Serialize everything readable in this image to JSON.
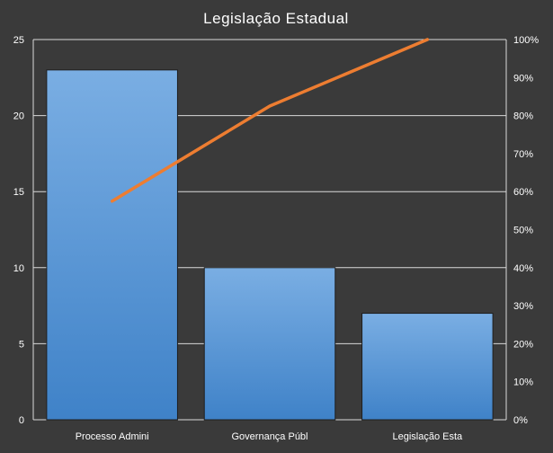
{
  "chart_data": {
    "type": "bar",
    "title": "Legislação Estadual",
    "categories": [
      "Processo Admini",
      "Governança Públ",
      "Legislação Esta"
    ],
    "series": [
      {
        "type": "bar",
        "values": [
          23,
          10,
          7
        ],
        "color": "#5b9bd5"
      },
      {
        "type": "line",
        "axis": "right",
        "values": [
          57.5,
          82.5,
          100
        ],
        "color": "#ed7d31"
      }
    ],
    "y_left": {
      "range": [
        0,
        25
      ],
      "ticks": [
        0,
        5,
        10,
        15,
        20,
        25
      ]
    },
    "y_right": {
      "range": [
        0,
        100
      ],
      "ticks": [
        "0%",
        "10%",
        "20%",
        "30%",
        "40%",
        "50%",
        "60%",
        "70%",
        "80%",
        "90%",
        "100%"
      ]
    },
    "grid": true,
    "legend": "none"
  }
}
